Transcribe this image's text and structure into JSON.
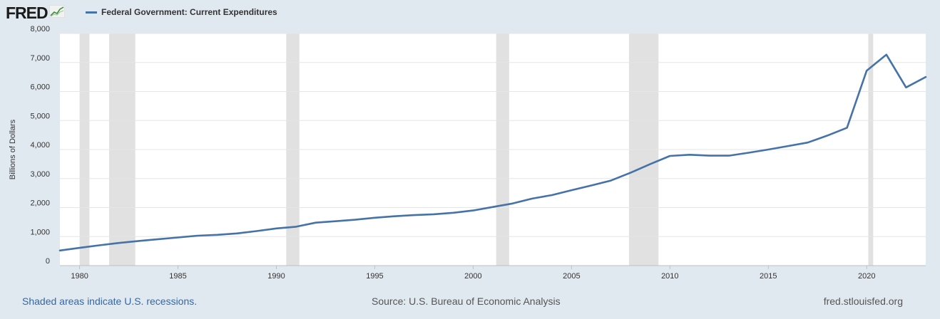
{
  "header": {
    "logo_text": "FRED",
    "logo_icon": "chart-line-icon",
    "legend_label": "Federal Government: Current Expenditures"
  },
  "colors": {
    "background": "#e1e9f0",
    "plot_background": "#ffffff",
    "series_line": "#4572a7",
    "recession_shade": "#e1e1e1",
    "grid": "#e6e6e6"
  },
  "footer": {
    "left": "Shaded areas indicate U.S. recessions.",
    "center": "Source: U.S. Bureau of Economic Analysis",
    "right": "fred.stlouisfed.org"
  },
  "chart_data": {
    "type": "line",
    "ylabel": "Billions of Dollars",
    "xlim": [
      1979,
      2023
    ],
    "ylim": [
      0,
      8000
    ],
    "y_ticks": [
      0,
      1000,
      2000,
      3000,
      4000,
      5000,
      6000,
      7000,
      8000
    ],
    "y_tick_labels": [
      "0",
      "1,000",
      "2,000",
      "3,000",
      "4,000",
      "5,000",
      "6,000",
      "7,000",
      "8,000"
    ],
    "x_ticks": [
      1980,
      1985,
      1990,
      1995,
      2000,
      2005,
      2010,
      2015,
      2020
    ],
    "grid": true,
    "recessions": [
      [
        1980.0,
        1980.5
      ],
      [
        1981.5,
        1982.83
      ],
      [
        1990.5,
        1991.17
      ],
      [
        2001.17,
        2001.83
      ],
      [
        2007.92,
        2009.42
      ],
      [
        2020.08,
        2020.33
      ]
    ],
    "series": [
      {
        "x": [
          1979,
          1980,
          1981,
          1982,
          1983,
          1984,
          1985,
          1986,
          1987,
          1988,
          1989,
          1990,
          1991,
          1992,
          1993,
          1994,
          1995,
          1996,
          1997,
          1998,
          1999,
          2000,
          2001,
          2002,
          2003,
          2004,
          2005,
          2006,
          2007,
          2008,
          2009,
          2010,
          2011,
          2012,
          2013,
          2014,
          2015,
          2016,
          2017,
          2018,
          2019,
          2020,
          2021,
          2022,
          2023
        ],
        "values": [
          520,
          610,
          700,
          780,
          850,
          910,
          970,
          1030,
          1060,
          1110,
          1190,
          1280,
          1340,
          1480,
          1530,
          1580,
          1650,
          1700,
          1740,
          1770,
          1820,
          1900,
          2020,
          2140,
          2310,
          2430,
          2600,
          2760,
          2930,
          3200,
          3500,
          3780,
          3820,
          3790,
          3790,
          3890,
          4000,
          4120,
          4240,
          4480,
          4750,
          6720,
          7270,
          6140,
          6500
        ]
      }
    ]
  }
}
